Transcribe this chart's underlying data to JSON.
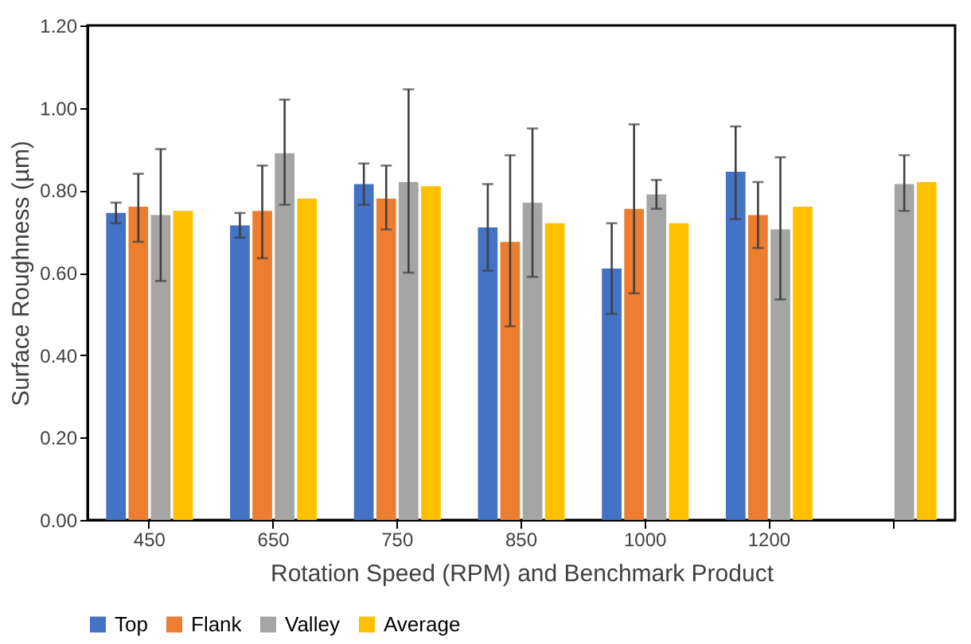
{
  "chart_data": {
    "type": "bar",
    "xlabel": "Rotation Speed (RPM) and Benchmark Product",
    "ylabel": "Surface Roughness (µm)",
    "categories": [
      "450",
      "650",
      "750",
      "850",
      "1000",
      "1200",
      null
    ],
    "series": [
      {
        "name": "Top",
        "color": "#4472c4",
        "values": [
          0.745,
          0.715,
          0.815,
          0.71,
          0.61,
          0.845,
          null
        ],
        "errors": [
          [
            0.72,
            0.77
          ],
          [
            0.685,
            0.745
          ],
          [
            0.765,
            0.865
          ],
          [
            0.605,
            0.815
          ],
          [
            0.5,
            0.72
          ],
          [
            0.73,
            0.955
          ],
          null
        ]
      },
      {
        "name": "Flank",
        "color": "#ed7d31",
        "values": [
          0.76,
          0.75,
          0.78,
          0.675,
          0.755,
          0.74,
          null
        ],
        "errors": [
          [
            0.675,
            0.84
          ],
          [
            0.635,
            0.86
          ],
          [
            0.705,
            0.86
          ],
          [
            0.47,
            0.885
          ],
          [
            0.55,
            0.96
          ],
          [
            0.66,
            0.82
          ],
          null
        ]
      },
      {
        "name": "Valley",
        "color": "#a5a5a5",
        "values": [
          0.74,
          0.89,
          0.82,
          0.77,
          0.79,
          0.705,
          0.815
        ],
        "errors": [
          [
            0.58,
            0.9
          ],
          [
            0.765,
            1.02
          ],
          [
            0.6,
            1.045
          ],
          [
            0.59,
            0.95
          ],
          [
            0.755,
            0.825
          ],
          [
            0.535,
            0.88
          ],
          [
            0.75,
            0.885
          ]
        ]
      },
      {
        "name": "Average",
        "color": "#ffc000",
        "values": [
          0.75,
          0.78,
          0.81,
          0.72,
          0.72,
          0.76,
          0.82
        ]
      }
    ],
    "ylim": [
      0,
      1.2
    ],
    "yticks": [
      {
        "value": 0,
        "label": "0.00"
      },
      {
        "value": 0.2,
        "label": "0.20"
      },
      {
        "value": 0.4,
        "label": "0.40"
      },
      {
        "value": 0.6,
        "label": "0.60"
      },
      {
        "value": 0.8,
        "label": "0.80"
      },
      {
        "value": 1.0,
        "label": "1.00"
      },
      {
        "value": 1.2,
        "label": "1.20"
      }
    ],
    "grid": false,
    "legend": "bottom"
  }
}
